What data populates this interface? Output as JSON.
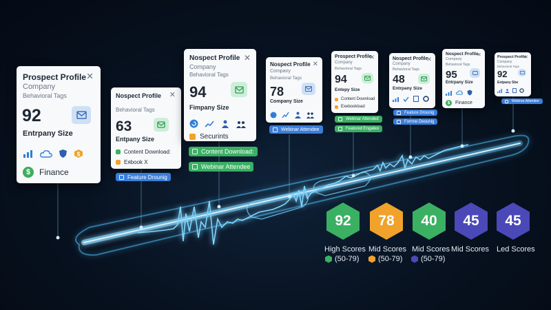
{
  "colors": {
    "background": "#07111f",
    "wave": "#5ec8ff",
    "green": "#3bb063",
    "blue": "#3b7ed9",
    "orange": "#f0a22a",
    "indigo": "#4b48b8"
  },
  "cards": [
    {
      "title": "Prospect Profile",
      "company": "Company",
      "tags_label": "Behavioral Tags",
      "score": "92",
      "size_label": "Entrpany Size",
      "icons": [
        "chart-icon",
        "cloud-icon",
        "shield-icon",
        "dollar-badge-icon"
      ],
      "category": "Finance",
      "close": "✕"
    },
    {
      "title": "Nospect Profile",
      "tags_label": "Behavioral Tags",
      "score": "63",
      "size_label": "Entpany Size",
      "tag1": "Content Download:",
      "tag2": "Eᴙbook X",
      "close": "✕"
    },
    {
      "title": "Nospect Profile",
      "company": "Company",
      "tags_label": "Behavioral Tags",
      "score": "94",
      "size_label": "Fimpany Size",
      "icons": [
        "refresh-icon",
        "chart-icon",
        "users-icon",
        "team-icon"
      ],
      "tag1": "Securints",
      "close": "✕"
    },
    {
      "title": "Nospect Profile",
      "company": "Company",
      "tags_label": "Behavioral Tags",
      "score": "78",
      "size_label": "Company Size",
      "icons": [
        "globe-icon",
        "chart-icon",
        "users-icon",
        "team-icon"
      ],
      "close": "✕"
    },
    {
      "title": "Prospect Profile",
      "company": "Company",
      "tags_label": "Behavioral Tags",
      "score": "94",
      "size_label": "Entepy Size",
      "tag1": "Content Download",
      "tag2": "Exebookload",
      "close": "✕"
    },
    {
      "title": "Nospect Profile",
      "company": "Company",
      "tags_label": "Behavioral Tags",
      "score": "48",
      "size_label": "Entrpany Size",
      "icons": [
        "chart-icon",
        "check-icon",
        "doc-icon",
        "gear-icon"
      ],
      "close": "✕"
    },
    {
      "title": "Nospect Profile",
      "company": "Company",
      "tags_label": "Behavioral Tags",
      "score": "95",
      "size_label": "Entrpany Size",
      "icons": [
        "chart-icon",
        "cloud-icon",
        "shield-icon"
      ],
      "category": "Finance",
      "close": "✕"
    },
    {
      "title": "Prospect Profile",
      "company": "Company",
      "tags_label": "Behavioral Tags",
      "score": "92",
      "size_label": "Entpany Sbe",
      "icons": [
        "chart-icon",
        "users-icon",
        "doc-icon",
        "gear-icon"
      ],
      "close": "✕"
    }
  ],
  "chips": [
    {
      "text": "Feature Drounig",
      "color": "blue"
    },
    {
      "text": "Content Download:",
      "color": "green"
    },
    {
      "text": "Webinar Attendee",
      "color": "green"
    },
    {
      "text": "Webinar Attendee",
      "color": "blue"
    },
    {
      "text": "Webinar Attended",
      "color": "green"
    },
    {
      "text": "Featured Engateo",
      "color": "green"
    },
    {
      "text": "Feature Drounig",
      "color": "blue"
    },
    {
      "text": "Forrme Deounig",
      "color": "blue"
    },
    {
      "text": "Webinar Attendee",
      "color": "blue"
    }
  ],
  "score_groups": [
    {
      "value": "92",
      "color": "#3bb063",
      "label": "High Scores",
      "range": "(50-79)",
      "range_color": "#3bb063"
    },
    {
      "value": "78",
      "color": "#f0a22a",
      "label": "Mid Scores",
      "range": "(50-79)",
      "range_color": "#f0a22a"
    },
    {
      "value": "40",
      "color": "#3bb063",
      "label": "Mid Scores",
      "range": "(50-79)",
      "range_color": "#4b48b8"
    },
    {
      "value": "45",
      "color": "#4b48b8",
      "label": "Mid Scores",
      "range": "",
      "range_color": ""
    },
    {
      "value": "45",
      "color": "#4b48b8",
      "label": "Led Scores",
      "range": "",
      "range_color": ""
    }
  ]
}
